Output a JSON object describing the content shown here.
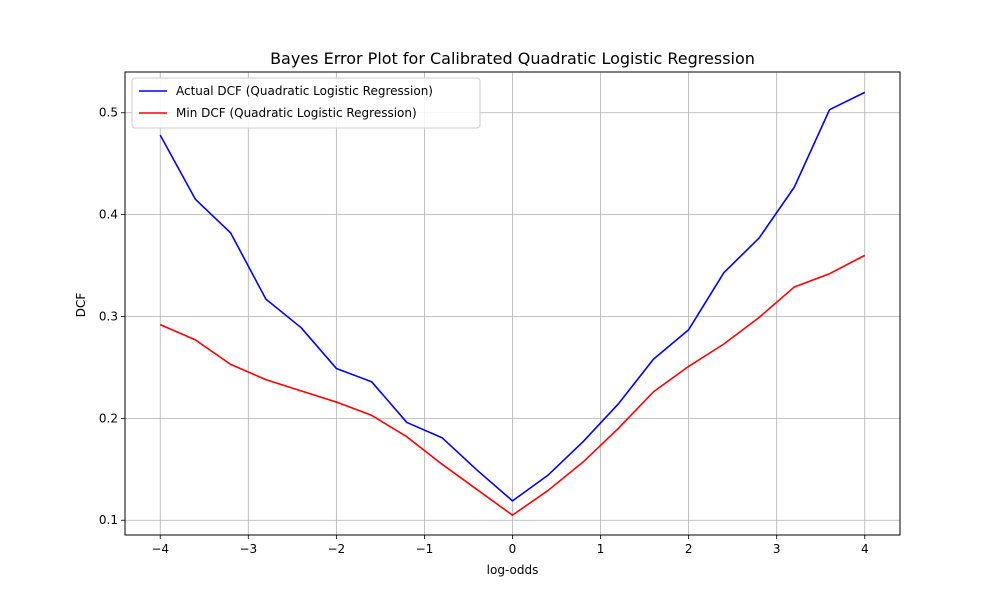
{
  "chart_data": {
    "type": "line",
    "title": "Bayes Error Plot for Calibrated Quadratic Logistic Regression",
    "xlabel": "log-odds",
    "ylabel": "DCF",
    "xlim": [
      -4.4,
      4.4
    ],
    "ylim": [
      0.0855,
      0.54
    ],
    "xticks": [
      -4,
      -3,
      -2,
      -1,
      0,
      1,
      2,
      3,
      4
    ],
    "xtick_labels": [
      "−4",
      "−3",
      "−2",
      "−1",
      "0",
      "1",
      "2",
      "3",
      "4"
    ],
    "yticks": [
      0.1,
      0.2,
      0.3,
      0.4,
      0.5
    ],
    "ytick_labels": [
      "0.1",
      "0.2",
      "0.3",
      "0.4",
      "0.5"
    ],
    "grid": true,
    "legend_position": "top-left",
    "x": [
      -4,
      -3.6,
      -3.2,
      -2.8,
      -2.4,
      -2,
      -1.6,
      -1.2,
      -0.8,
      -0.4,
      0,
      0.4,
      0.8,
      1.2,
      1.6,
      2,
      2.4,
      2.8,
      3.2,
      3.6,
      4
    ],
    "series": [
      {
        "name": "Actual DCF (Quadratic Logistic Regression)",
        "color": "#0000ff",
        "values": [
          0.478,
          0.415,
          0.382,
          0.317,
          0.289,
          0.249,
          0.236,
          0.196,
          0.181,
          0.149,
          0.119,
          0.144,
          0.177,
          0.214,
          0.258,
          0.287,
          0.343,
          0.377,
          0.427,
          0.503,
          0.52
        ]
      },
      {
        "name": "Min DCF (Quadratic Logistic Regression)",
        "color": "#ff0000",
        "values": [
          0.292,
          0.277,
          0.253,
          0.238,
          0.227,
          0.216,
          0.203,
          0.182,
          0.155,
          0.13,
          0.105,
          0.129,
          0.157,
          0.19,
          0.226,
          0.251,
          0.273,
          0.299,
          0.329,
          0.342,
          0.36
        ]
      }
    ]
  }
}
